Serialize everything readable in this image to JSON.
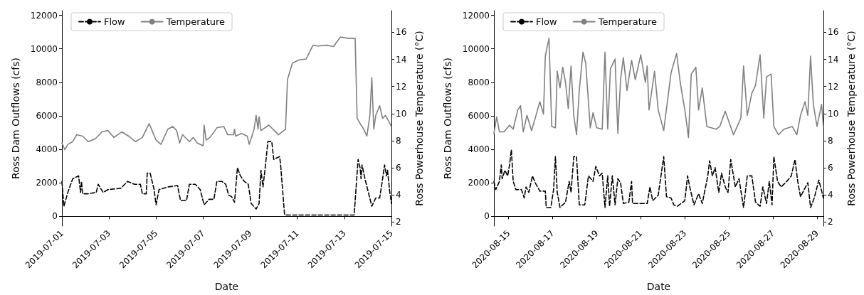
{
  "chart_data": [
    {
      "type": "line",
      "xlabel": "Date",
      "ylabel": "Ross Dam Outflows (cfs)",
      "y2label": "Ross Powerhouse Temperature (°C)",
      "xlim": [
        "2019-07-01",
        "2019-07-15"
      ],
      "xticks": [
        "2019-07-01",
        "2019-07-03",
        "2019-07-05",
        "2019-07-07",
        "2019-07-09",
        "2019-07-11",
        "2019-07-13",
        "2019-07-15"
      ],
      "ylim": [
        -575,
        12280
      ],
      "yticks": [
        0,
        2000,
        4000,
        6000,
        8000,
        10000,
        12000
      ],
      "y2lim": [
        1.7,
        17.6
      ],
      "y2ticks": [
        2,
        4,
        6,
        8,
        10,
        12,
        14,
        16
      ],
      "legend": "top left",
      "grid": false,
      "series": [
        {
          "name": "Flow",
          "color": "#000000",
          "line_style": "dashed",
          "x": [
            "2019-07-01T00:00",
            "2019-07-01T02:00",
            "2019-07-01T06:00",
            "2019-07-01T11:00",
            "2019-07-01T17:00",
            "2019-07-01T19:00",
            "2019-07-01T20:00",
            "2019-07-01T21:00",
            "2019-07-02T02:00",
            "2019-07-02T11:00",
            "2019-07-02T13:00",
            "2019-07-02T18:00",
            "2019-07-02T23:00",
            "2019-07-03T12:00",
            "2019-07-03T19:00",
            "2019-07-04T02:00",
            "2019-07-04T08:00",
            "2019-07-04T10:00",
            "2019-07-04T14:00",
            "2019-07-04T15:00",
            "2019-07-04T18:00",
            "2019-07-04T22:00",
            "2019-07-05T00:00",
            "2019-07-05T03:00",
            "2019-07-05T12:00",
            "2019-07-05T22:00",
            "2019-07-05T23:00",
            "2019-07-06T01:00",
            "2019-07-06T07:00",
            "2019-07-06T10:00",
            "2019-07-06T16:00",
            "2019-07-06T21:00",
            "2019-07-07T01:00",
            "2019-07-07T06:00",
            "2019-07-07T11:00",
            "2019-07-07T14:00",
            "2019-07-07T19:00",
            "2019-07-07T23:00",
            "2019-07-08T02:00",
            "2019-07-08T05:00",
            "2019-07-08T08:00",
            "2019-07-08T11:00",
            "2019-07-08T14:00",
            "2019-07-08T18:00",
            "2019-07-08T22:00",
            "2019-07-09T01:00",
            "2019-07-09T06:00",
            "2019-07-09T09:00",
            "2019-07-09T11:00",
            "2019-07-09T13:00",
            "2019-07-09T15:00",
            "2019-07-09T18:00",
            "2019-07-09T22:00",
            "2019-07-10T00:00",
            "2019-07-10T06:00",
            "2019-07-10T07:00",
            "2019-07-10T11:00",
            "2019-07-10T13:00",
            "2019-07-13T10:00",
            "2019-07-13T14:00",
            "2019-07-13T16:00",
            "2019-07-13T17:00",
            "2019-07-13T18:00",
            "2019-07-13T21:00",
            "2019-07-14T04:00",
            "2019-07-14T08:00",
            "2019-07-14T12:00",
            "2019-07-14T15:00",
            "2019-07-14T17:00",
            "2019-07-14T19:00",
            "2019-07-14T20:00",
            "2019-07-14T22:00",
            "2019-07-15T00:00"
          ],
          "values": [
            2090,
            600,
            1430,
            2250,
            2420,
            1430,
            2090,
            1350,
            1350,
            1430,
            1920,
            1430,
            1600,
            1680,
            2090,
            1920,
            1920,
            1350,
            1350,
            2580,
            2580,
            1600,
            690,
            1600,
            1760,
            1840,
            1510,
            940,
            940,
            1920,
            1920,
            1600,
            690,
            1020,
            1020,
            2090,
            2090,
            1920,
            1270,
            1180,
            850,
            2910,
            2420,
            2090,
            1920,
            770,
            440,
            770,
            2750,
            1760,
            2750,
            4470,
            4470,
            3400,
            3570,
            3070,
            115,
            80,
            80,
            3400,
            2910,
            2250,
            3070,
            2250,
            610,
            1100,
            1100,
            2250,
            3070,
            2420,
            2750,
            1600,
            770
          ]
        },
        {
          "name": "Temperature",
          "color": "#808080",
          "line_style": "solid",
          "axis": "y2",
          "x": [
            "2019-07-01T00:00",
            "2019-07-01T03:00",
            "2019-07-01T06:00",
            "2019-07-01T11:00",
            "2019-07-01T15:00",
            "2019-07-01T21:00",
            "2019-07-02T03:00",
            "2019-07-02T10:00",
            "2019-07-02T17:00",
            "2019-07-02T23:00",
            "2019-07-03T05:00",
            "2019-07-03T13:00",
            "2019-07-03T20:00",
            "2019-07-04T03:00",
            "2019-07-04T10:00",
            "2019-07-04T17:00",
            "2019-07-05T00:00",
            "2019-07-05T05:00",
            "2019-07-05T12:00",
            "2019-07-05T17:00",
            "2019-07-05T21:00",
            "2019-07-06T00:00",
            "2019-07-06T03:00",
            "2019-07-06T10:00",
            "2019-07-06T14:00",
            "2019-07-06T18:00",
            "2019-07-07T00:00",
            "2019-07-07T01:00",
            "2019-07-07T03:00",
            "2019-07-07T07:00",
            "2019-07-07T14:00",
            "2019-07-07T21:00",
            "2019-07-08T01:00",
            "2019-07-08T07:00",
            "2019-07-08T08:00",
            "2019-07-08T09:00",
            "2019-07-08T15:00",
            "2019-07-08T21:00",
            "2019-07-08T23:00",
            "2019-07-09T04:00",
            "2019-07-09T06:00",
            "2019-07-09T08:00",
            "2019-07-09T09:00",
            "2019-07-09T11:00",
            "2019-07-09T19:00",
            "2019-07-10T02:00",
            "2019-07-10T05:00",
            "2019-07-10T12:00",
            "2019-07-10T14:00",
            "2019-07-10T19:00",
            "2019-07-11T02:00",
            "2019-07-11T09:00",
            "2019-07-11T16:00",
            "2019-07-11T21:00",
            "2019-07-12T06:00",
            "2019-07-12T13:00",
            "2019-07-12T20:00",
            "2019-07-13T04:00",
            "2019-07-13T11:00",
            "2019-07-13T13:00",
            "2019-07-13T17:00",
            "2019-07-13T19:00",
            "2019-07-13T23:00",
            "2019-07-14T02:00",
            "2019-07-14T04:00",
            "2019-07-14T06:00",
            "2019-07-14T08:00",
            "2019-07-14T12:00",
            "2019-07-14T15:00",
            "2019-07-14T18:00",
            "2019-07-15T00:00"
          ],
          "values": [
            7.83,
            7.33,
            7.73,
            7.93,
            8.44,
            8.34,
            7.93,
            8.14,
            8.65,
            8.75,
            8.24,
            8.65,
            8.34,
            7.93,
            8.24,
            9.26,
            8.04,
            7.73,
            8.85,
            9.05,
            8.75,
            7.83,
            8.44,
            7.93,
            8.24,
            7.83,
            7.63,
            9.15,
            8.04,
            8.24,
            8.95,
            9.05,
            8.44,
            8.44,
            8.85,
            8.34,
            8.54,
            8.34,
            7.73,
            8.85,
            9.87,
            8.85,
            9.77,
            8.75,
            9.15,
            8.65,
            8.44,
            8.85,
            12.51,
            13.73,
            13.97,
            14.03,
            15.05,
            14.99,
            15.05,
            14.95,
            15.66,
            15.56,
            15.56,
            9.66,
            9.15,
            8.95,
            8.34,
            9.87,
            12.65,
            8.85,
            9.87,
            10.58,
            9.66,
            9.87,
            9.05
          ]
        }
      ]
    },
    {
      "type": "line",
      "xlabel": "Date",
      "ylabel": "Ross Dam Outflows (cfs)",
      "y2label": "Ross Powerhouse Temperature (°C)",
      "xlim": [
        "2020-08-14T08:00",
        "2020-08-29T07:00"
      ],
      "xticks": [
        "2020-08-15",
        "2020-08-17",
        "2020-08-19",
        "2020-08-21",
        "2020-08-23",
        "2020-08-25",
        "2020-08-27",
        "2020-08-29"
      ],
      "ylim": [
        -575,
        12280
      ],
      "yticks": [
        0,
        2000,
        4000,
        6000,
        8000,
        10000,
        12000
      ],
      "y2lim": [
        1.7,
        17.6
      ],
      "y2ticks": [
        2,
        4,
        6,
        8,
        10,
        12,
        14,
        16
      ],
      "legend": "top left",
      "grid": false,
      "series": [
        {
          "name": "Flow",
          "color": "#000000",
          "line_style": "dashed",
          "x": [
            "2020-08-14T08:00",
            "2020-08-14T10:00",
            "2020-08-14T14:00",
            "2020-08-14T16:00",
            "2020-08-14T17:00",
            "2020-08-14T20:00",
            "2020-08-14T23:00",
            "2020-08-15T01:00",
            "2020-08-15T03:00",
            "2020-08-15T05:00",
            "2020-08-15T08:00",
            "2020-08-15T14:00",
            "2020-08-15T17:00",
            "2020-08-15T19:00",
            "2020-08-15T22:00",
            "2020-08-16T02:00",
            "2020-08-16T05:00",
            "2020-08-16T10:00",
            "2020-08-16T16:00",
            "2020-08-16T17:00",
            "2020-08-16T22:00",
            "2020-08-17T01:00",
            "2020-08-17T03:00",
            "2020-08-17T05:00",
            "2020-08-17T08:00",
            "2020-08-17T14:00",
            "2020-08-17T18:00",
            "2020-08-17T20:00",
            "2020-08-17T23:00",
            "2020-08-18T02:00",
            "2020-08-18T05:00",
            "2020-08-18T11:00",
            "2020-08-18T15:00",
            "2020-08-18T20:00",
            "2020-08-18T23:00",
            "2020-08-19T03:00",
            "2020-08-19T06:00",
            "2020-08-19T09:00",
            "2020-08-19T12:00",
            "2020-08-19T14:00",
            "2020-08-19T17:00",
            "2020-08-19T20:00",
            "2020-08-19T23:00",
            "2020-08-20T02:00",
            "2020-08-20T05:00",
            "2020-08-20T11:00",
            "2020-08-20T14:00",
            "2020-08-20T15:00",
            "2020-08-21T05:00",
            "2020-08-21T07:00",
            "2020-08-21T10:00",
            "2020-08-21T13:00",
            "2020-08-21T19:00",
            "2020-08-22T01:00",
            "2020-08-22T04:00",
            "2020-08-22T09:00",
            "2020-08-22T12:00",
            "2020-08-22T16:00",
            "2020-08-23T00:00",
            "2020-08-23T03:00",
            "2020-08-23T06:00",
            "2020-08-23T10:00",
            "2020-08-23T15:00",
            "2020-08-23T19:00",
            "2020-08-24T01:00",
            "2020-08-24T03:00",
            "2020-08-24T06:00",
            "2020-08-24T09:00",
            "2020-08-24T13:00",
            "2020-08-24T16:00",
            "2020-08-24T20:00",
            "2020-08-24T23:00",
            "2020-08-25T02:00",
            "2020-08-25T07:00",
            "2020-08-25T11:00",
            "2020-08-25T16:00",
            "2020-08-25T20:00",
            "2020-08-26T01:00",
            "2020-08-26T05:00",
            "2020-08-26T10:00",
            "2020-08-26T13:00",
            "2020-08-26T17:00",
            "2020-08-26T20:00",
            "2020-08-26T23:00",
            "2020-08-27T01:00",
            "2020-08-27T05:00",
            "2020-08-27T09:00",
            "2020-08-27T15:00",
            "2020-08-27T20:00",
            "2020-08-28T00:00",
            "2020-08-28T03:00",
            "2020-08-28T06:00",
            "2020-08-28T14:00",
            "2020-08-28T17:00",
            "2020-08-28T21:00",
            "2020-08-29T02:00",
            "2020-08-29T07:00"
          ],
          "values": [
            2090,
            1600,
            2090,
            3070,
            2250,
            2750,
            2420,
            3070,
            3980,
            2090,
            1600,
            1600,
            1100,
            1760,
            1430,
            2420,
            2010,
            1510,
            1510,
            530,
            530,
            1600,
            3570,
            1430,
            530,
            850,
            2090,
            1430,
            3570,
            3570,
            690,
            690,
            2420,
            2090,
            2990,
            2420,
            2580,
            530,
            2420,
            610,
            2420,
            690,
            2250,
            2010,
            770,
            850,
            2090,
            770,
            770,
            770,
            1760,
            940,
            1270,
            3570,
            1180,
            1100,
            690,
            610,
            940,
            2420,
            1600,
            690,
            1350,
            770,
            2420,
            3320,
            2420,
            2910,
            1430,
            2580,
            1760,
            1430,
            3400,
            1760,
            2250,
            530,
            2420,
            2420,
            850,
            610,
            1760,
            770,
            2090,
            690,
            3570,
            2090,
            1760,
            2090,
            2420,
            3400,
            2090,
            1180,
            2010,
            530,
            1100,
            2170,
            1100
          ]
        },
        {
          "name": "Temperature",
          "color": "#808080",
          "line_style": "solid",
          "axis": "y2",
          "x": [
            "2020-08-14T08:00",
            "2020-08-14T11:00",
            "2020-08-14T14:00",
            "2020-08-14T19:00",
            "2020-08-15T01:00",
            "2020-08-15T05:00",
            "2020-08-15T10:00",
            "2020-08-15T13:00",
            "2020-08-15T16:00",
            "2020-08-15T20:00",
            "2020-08-16T01:00",
            "2020-08-16T05:00",
            "2020-08-16T10:00",
            "2020-08-16T14:00",
            "2020-08-16T16:00",
            "2020-08-16T20:00",
            "2020-08-16T23:00",
            "2020-08-17T03:00",
            "2020-08-17T05:00",
            "2020-08-17T08:00",
            "2020-08-17T11:00",
            "2020-08-17T14:00",
            "2020-08-17T17:00",
            "2020-08-17T20:00",
            "2020-08-17T23:00",
            "2020-08-18T02:00",
            "2020-08-18T05:00",
            "2020-08-18T09:00",
            "2020-08-18T12:00",
            "2020-08-18T17:00",
            "2020-08-18T20:00",
            "2020-08-19T00:00",
            "2020-08-19T06:00",
            "2020-08-19T09:00",
            "2020-08-19T12:00",
            "2020-08-19T15:00",
            "2020-08-19T20:00",
            "2020-08-19T23:00",
            "2020-08-20T02:00",
            "2020-08-20T05:00",
            "2020-08-20T09:00",
            "2020-08-20T14:00",
            "2020-08-20T18:00",
            "2020-08-21T00:00",
            "2020-08-21T05:00",
            "2020-08-21T07:00",
            "2020-08-21T09:00",
            "2020-08-21T15:00",
            "2020-08-21T19:00",
            "2020-08-22T01:00",
            "2020-08-22T09:00",
            "2020-08-22T15:00",
            "2020-08-22T19:00",
            "2020-08-23T00:00",
            "2020-08-23T04:00",
            "2020-08-23T07:00",
            "2020-08-23T12:00",
            "2020-08-23T15:00",
            "2020-08-23T19:00",
            "2020-08-24T00:00",
            "2020-08-24T10:00",
            "2020-08-24T14:00",
            "2020-08-24T20:00",
            "2020-08-25T05:00",
            "2020-08-25T13:00",
            "2020-08-25T16:00",
            "2020-08-25T20:00",
            "2020-08-26T01:00",
            "2020-08-26T05:00",
            "2020-08-26T10:00",
            "2020-08-26T14:00",
            "2020-08-26T17:00",
            "2020-08-26T22:00",
            "2020-08-27T01:00",
            "2020-08-27T06:00",
            "2020-08-27T12:00",
            "2020-08-27T21:00",
            "2020-08-28T02:00",
            "2020-08-28T06:00",
            "2020-08-28T11:00",
            "2020-08-28T14:00",
            "2020-08-28T17:00",
            "2020-08-28T20:00",
            "2020-08-29T00:00",
            "2020-08-29T05:00",
            "2020-08-29T07:00"
          ],
          "values": [
            8.54,
            9.77,
            8.65,
            8.65,
            9.15,
            8.85,
            10.27,
            10.58,
            8.65,
            9.87,
            8.75,
            9.66,
            10.88,
            9.97,
            14.24,
            15.56,
            9.05,
            8.95,
            13.12,
            11.9,
            13.42,
            12.3,
            10.37,
            13.52,
            9.87,
            8.44,
            11.7,
            14.54,
            13.73,
            8.95,
            10.07,
            8.95,
            8.85,
            14.54,
            8.85,
            13.32,
            14.03,
            8.54,
            12.51,
            14.13,
            11.7,
            13.93,
            12.51,
            14.34,
            12.3,
            13.52,
            10.27,
            13.12,
            10.27,
            8.75,
            13.02,
            14.44,
            12.3,
            10.27,
            8.24,
            12.92,
            13.42,
            10.27,
            11.9,
            9.05,
            8.85,
            9.05,
            10.17,
            8.44,
            9.66,
            13.52,
            9.87,
            11.5,
            12.1,
            14.34,
            9.66,
            12.71,
            12.92,
            9.05,
            8.44,
            8.85,
            9.05,
            8.44,
            9.87,
            10.88,
            9.87,
            14.24,
            10.68,
            9.05,
            10.68,
            9.05
          ]
        }
      ]
    }
  ]
}
